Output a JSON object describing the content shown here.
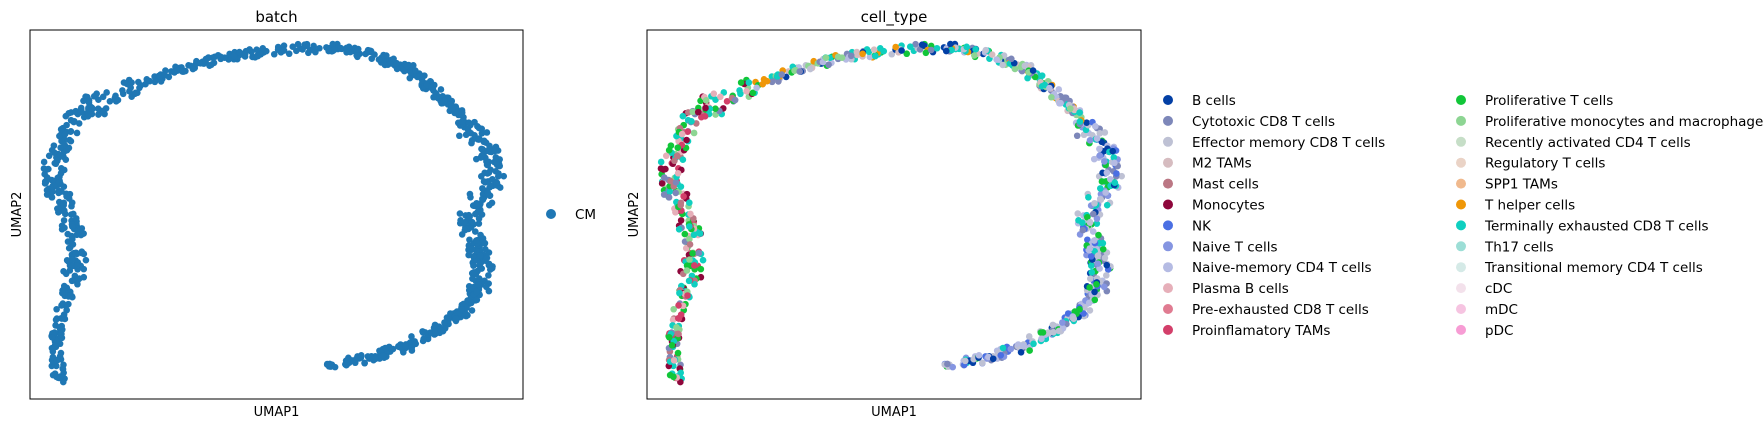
{
  "chart_data": [
    {
      "type": "scatter",
      "title": "batch",
      "xlabel": "UMAP1",
      "ylabel": "UMAP2",
      "grid": false,
      "ticks": false,
      "legend": {
        "placement": "right",
        "entries": [
          {
            "name": "CM",
            "color": "#1f77b4"
          }
        ]
      },
      "series": [
        {
          "name": "CM",
          "color": "#1f77b4",
          "curve_points": "see cell_type panel"
        }
      ]
    },
    {
      "type": "scatter",
      "title": "cell_type",
      "xlabel": "UMAP1",
      "ylabel": "UMAP2",
      "grid": false,
      "ticks": false,
      "legend": {
        "placement": "right",
        "columns": 2,
        "entries": [
          {
            "name": "B cells",
            "color": "#023fa5"
          },
          {
            "name": "Cytotoxic CD8 T cells",
            "color": "#7d87b9"
          },
          {
            "name": "Effector memory CD8 T cells",
            "color": "#bec1d4"
          },
          {
            "name": "M2 TAMs",
            "color": "#d6bcc0"
          },
          {
            "name": "Mast cells",
            "color": "#bb7784"
          },
          {
            "name": "Monocytes",
            "color": "#8e063b"
          },
          {
            "name": "NK",
            "color": "#4a6fe3"
          },
          {
            "name": "Naive T cells",
            "color": "#8595e1"
          },
          {
            "name": "Naive-memory CD4 T cells",
            "color": "#b5bbe3"
          },
          {
            "name": "Plasma B cells",
            "color": "#e6afb9"
          },
          {
            "name": "Pre-exhausted CD8 T cells",
            "color": "#e07b91"
          },
          {
            "name": "Proinflamatory TAMs",
            "color": "#d33f6a"
          },
          {
            "name": "Proliferative T cells",
            "color": "#11c638"
          },
          {
            "name": "Proliferative monocytes and macrophages",
            "color": "#8dd593"
          },
          {
            "name": "Recently activated CD4 T cells",
            "color": "#c6dec7"
          },
          {
            "name": "Regulatory T cells",
            "color": "#ead3c6"
          },
          {
            "name": "SPP1 TAMs",
            "color": "#f0b98d"
          },
          {
            "name": "T helper cells",
            "color": "#ef9708"
          },
          {
            "name": "Terminally exhausted CD8 T cells",
            "color": "#0fcfc0"
          },
          {
            "name": "Th17 cells",
            "color": "#9cded6"
          },
          {
            "name": "Transitional memory CD4 T cells",
            "color": "#d5eae7"
          },
          {
            "name": "cDC",
            "color": "#f3e1eb"
          },
          {
            "name": "mDC",
            "color": "#f6c4e1"
          },
          {
            "name": "pDC",
            "color": "#f79cd4"
          }
        ]
      }
    }
  ]
}
